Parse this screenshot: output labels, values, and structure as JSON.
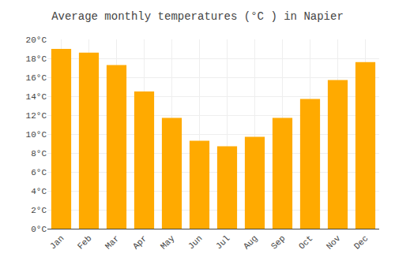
{
  "chart_data": {
    "type": "bar",
    "title": "Average monthly temperatures (°C ) in Napier",
    "categories": [
      "Jan",
      "Feb",
      "Mar",
      "Apr",
      "May",
      "Jun",
      "Jul",
      "Aug",
      "Sep",
      "Oct",
      "Nov",
      "Dec"
    ],
    "values": [
      19.0,
      18.6,
      17.3,
      14.5,
      11.7,
      9.3,
      8.7,
      9.7,
      11.7,
      13.7,
      15.7,
      17.6
    ],
    "color": "#FFAA00",
    "ylim": [
      0,
      20
    ],
    "yticks": [
      {
        "value": 0,
        "label": "0°C"
      },
      {
        "value": 2,
        "label": "2°C"
      },
      {
        "value": 4,
        "label": "4°C"
      },
      {
        "value": 6,
        "label": "6°C"
      },
      {
        "value": 8,
        "label": "8°C"
      },
      {
        "value": 10,
        "label": "10°C"
      },
      {
        "value": 12,
        "label": "12°C"
      },
      {
        "value": 14,
        "label": "14°C"
      },
      {
        "value": 16,
        "label": "16°C"
      },
      {
        "value": 18,
        "label": "18°C"
      },
      {
        "value": 20,
        "label": "20°C"
      }
    ],
    "grid": true
  }
}
